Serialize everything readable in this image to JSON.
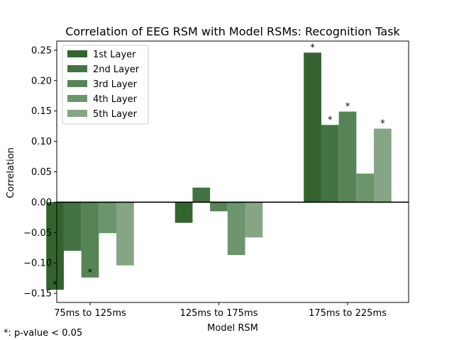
{
  "chart_data": {
    "type": "bar",
    "title": "Correlation of EEG RSM with Model RSMs: Recognition Task",
    "xlabel": "Model RSM",
    "ylabel": "Correlation",
    "categories": [
      "75ms to 125ms",
      "125ms to 175ms",
      "175ms to 225ms"
    ],
    "ylim": [
      -0.165,
      0.265
    ],
    "yticks": [
      -0.15,
      -0.1,
      -0.05,
      0.0,
      0.05,
      0.1,
      0.15,
      0.2,
      0.25
    ],
    "ytick_labels": [
      "−0.15",
      "−0.10",
      "−0.05",
      "0.00",
      "0.05",
      "0.10",
      "0.15",
      "0.20",
      "0.25"
    ],
    "zero_line": true,
    "grid": false,
    "legend_position": "top-left",
    "significance_marker": "*",
    "series": [
      {
        "name": "1st Layer",
        "color": "#33642f",
        "values": [
          -0.144,
          -0.034,
          0.246
        ],
        "significant": [
          true,
          false,
          true
        ]
      },
      {
        "name": "2nd Layer",
        "color": "#437342",
        "values": [
          -0.08,
          0.024,
          0.127
        ],
        "significant": [
          false,
          false,
          true
        ]
      },
      {
        "name": "3rd Layer",
        "color": "#578456",
        "values": [
          -0.124,
          -0.015,
          0.149
        ],
        "significant": [
          true,
          false,
          true
        ]
      },
      {
        "name": "4th Layer",
        "color": "#6d956b",
        "values": [
          -0.051,
          -0.087,
          0.047
        ],
        "significant": [
          false,
          false,
          false
        ]
      },
      {
        "name": "5th Layer",
        "color": "#86a584",
        "values": [
          -0.104,
          -0.058,
          0.121
        ],
        "significant": [
          false,
          false,
          true
        ]
      }
    ],
    "footnote": "*: p-value < 0.05"
  }
}
